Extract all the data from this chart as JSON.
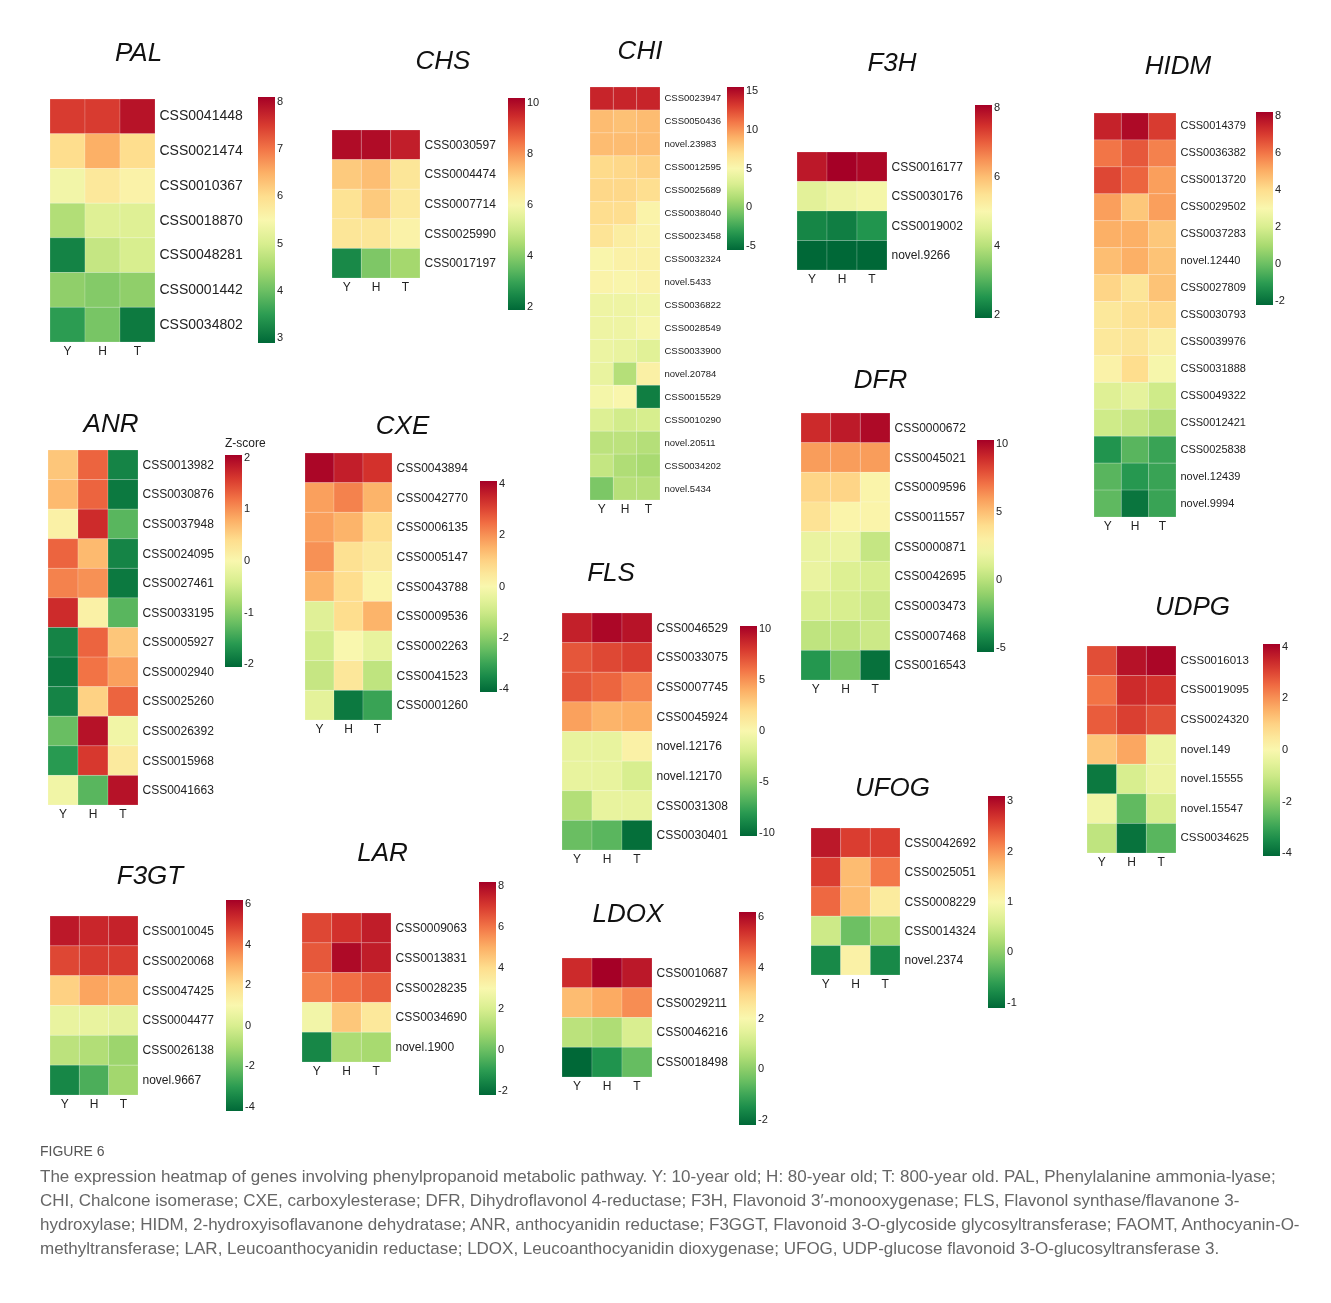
{
  "chart_data": [
    {
      "type": "heatmap",
      "title": "PAL",
      "categories": [
        "Y",
        "H",
        "T"
      ],
      "y_categories": [
        "CSS0041448",
        "CSS0021474",
        "CSS0010367",
        "CSS0018870",
        "CSS0048281",
        "CSS0001442",
        "CSS0034802"
      ],
      "cells": [
        [
          7.5,
          7.5,
          7.9
        ],
        [
          6.0,
          6.5,
          6.0
        ],
        [
          5.4,
          5.8,
          5.6
        ],
        [
          4.6,
          5.1,
          5.1
        ],
        [
          3.2,
          4.8,
          5.0
        ],
        [
          4.3,
          4.2,
          4.3
        ],
        [
          3.5,
          4.1,
          3.1
        ]
      ],
      "clim": [
        2.9,
        8.1
      ],
      "cticks": [
        3,
        4,
        5,
        6,
        7,
        8
      ],
      "annotations": [
        "FIGURE 6",
        "The expression heatmap of genes involving phenylpropanoid metabolic pathway. Y: 10-year old; H: 80-year old; T: 800-year old. PAL, Phenylalanine ammonia-lyase; CHI, Chalcone isomerase; CXE, carboxylesterase; DFR, Dihydroflavonol 4-reductase; F3H, Flavonoid 3′-monooxygenase; FLS, Flavonol synthase/flavanone 3-hydroxylase; HIDM, 2-hydroxyisoflavanone dehydratase; ANR, anthocyanidin reductase; F3GGT, Flavonoid 3-O-glycoside glycosyltransferase; FAOMT, Anthocyanin-O-methyltransferase; LAR, Leucoanthocyanidin reductase; LDOX, Leucoanthocyanidin dioxygenase; UFOG, UDP-glucose flavonoid 3-O-glucosyltransferase 3."
      ]
    },
    {
      "type": "heatmap",
      "title": "CHS",
      "categories": [
        "Y",
        "H",
        "T"
      ],
      "y_categories": [
        "CSS0030597",
        "CSS0004474",
        "CSS0007714",
        "CSS0025990",
        "CSS0017197"
      ],
      "cells": [
        [
          10,
          10,
          9.7
        ],
        [
          7.2,
          7.4,
          6.6
        ],
        [
          6.7,
          7.2,
          6.5
        ],
        [
          6.6,
          6.6,
          6.2
        ],
        [
          2.5,
          3.9,
          4.4
        ]
      ],
      "clim": [
        1.9,
        10.2
      ],
      "cticks": [
        2,
        4,
        6,
        8,
        10
      ]
    },
    {
      "type": "heatmap",
      "title": "CHI",
      "categories": [
        "Y",
        "H",
        "T"
      ],
      "y_categories": [
        "CSS0023947",
        "CSS0050436",
        "novel.23983",
        "CSS0012595",
        "CSS0025689",
        "CSS0038040",
        "CSS0023458",
        "CSS0032324",
        "novel.5433",
        "CSS0036822",
        "CSS0028549",
        "CSS0033900",
        "novel.20784",
        "CSS0015529",
        "CSS0010290",
        "novel.20511",
        "CSS0034202",
        "novel.5434"
      ],
      "cells": [
        [
          14,
          14,
          14
        ],
        [
          8.5,
          8.3,
          8.5
        ],
        [
          8.5,
          8.5,
          8.5
        ],
        [
          7.2,
          7.3,
          7.6
        ],
        [
          7.3,
          7.3,
          6.9
        ],
        [
          7.0,
          7.0,
          5.3
        ],
        [
          6.5,
          5.8,
          5.4
        ],
        [
          5.2,
          5.5,
          5.5
        ],
        [
          5.3,
          5.2,
          5.4
        ],
        [
          4.3,
          4.3,
          4.5
        ],
        [
          4.3,
          4.3,
          4.8
        ],
        [
          4.2,
          4.0,
          3.5
        ],
        [
          4.0,
          1.5,
          5.6
        ],
        [
          4.7,
          5.1,
          -4.5
        ],
        [
          3.3,
          2.7,
          2.9
        ],
        [
          1.8,
          1.8,
          1.5
        ],
        [
          2.1,
          1.3,
          1.0
        ],
        [
          -0.5,
          1.6,
          1.6
        ]
      ],
      "clim": [
        -5.5,
        15.5
      ],
      "cticks": [
        -5,
        0,
        5,
        10,
        15
      ]
    },
    {
      "type": "heatmap",
      "title": "F3H",
      "categories": [
        "Y",
        "H",
        "T"
      ],
      "y_categories": [
        "CSS0016177",
        "CSS0030176",
        "CSS0019002",
        "novel.9266"
      ],
      "cells": [
        [
          7.8,
          8.1,
          8.0
        ],
        [
          4.6,
          4.8,
          4.9
        ],
        [
          2.3,
          2.2,
          2.5
        ],
        [
          1.9,
          1.9,
          1.9
        ]
      ],
      "clim": [
        1.9,
        8.1
      ],
      "cticks": [
        2,
        4,
        6,
        8
      ]
    },
    {
      "type": "heatmap",
      "title": "HIDM",
      "categories": [
        "Y",
        "H",
        "T"
      ],
      "y_categories": [
        "CSS0014379",
        "CSS0036382",
        "CSS0013720",
        "CSS0029502",
        "CSS0037283",
        "novel.12440",
        "CSS0027809",
        "CSS0030793",
        "CSS0039976",
        "CSS0031888",
        "CSS0049322",
        "CSS0012421",
        "CSS0025838",
        "novel.12439",
        "novel.9994"
      ],
      "cells": [
        [
          7.5,
          8,
          7
        ],
        [
          6,
          6.5,
          5.8
        ],
        [
          6.8,
          6.3,
          5.3
        ],
        [
          5.3,
          4.5,
          5.3
        ],
        [
          5.0,
          5.0,
          4.5
        ],
        [
          4.7,
          5.0,
          4.6
        ],
        [
          4.2,
          3.7,
          4.6
        ],
        [
          3.6,
          3.9,
          4.1
        ],
        [
          3.6,
          3.7,
          3.3
        ],
        [
          3.2,
          4.0,
          2.9
        ],
        [
          2.2,
          2.4,
          1.8
        ],
        [
          1.8,
          1.6,
          1.2
        ],
        [
          -1.2,
          -0.3,
          -0.8
        ],
        [
          -0.3,
          -1.1,
          -0.8
        ],
        [
          -0.2,
          -1.9,
          -0.8
        ]
      ],
      "clim": [
        -2.2,
        8.2
      ],
      "cticks": [
        -2,
        0,
        2,
        4,
        6,
        8
      ]
    },
    {
      "type": "heatmap",
      "title": "ANR",
      "clabel": "Z-score",
      "categories": [
        "Y",
        "H",
        "T"
      ],
      "y_categories": [
        "CSS0013982",
        "CSS0030876",
        "CSS0037948",
        "CSS0024095",
        "CSS0027461",
        "CSS0033195",
        "CSS0005927",
        "CSS0002940",
        "CSS0025260",
        "CSS0026392",
        "CSS0015968",
        "CSS0041663"
      ],
      "cells": [
        [
          0.6,
          1.3,
          -1.8
        ],
        [
          0.7,
          1.3,
          -1.9
        ],
        [
          0.1,
          1.7,
          -1.3
        ],
        [
          1.3,
          0.7,
          -1.8
        ],
        [
          1.1,
          1.0,
          -1.9
        ],
        [
          1.7,
          0.1,
          -1.3
        ],
        [
          -1.8,
          1.3,
          0.6
        ],
        [
          -1.9,
          1.2,
          0.9
        ],
        [
          -1.8,
          0.5,
          1.3
        ],
        [
          -1.2,
          1.9,
          -0.1
        ],
        [
          -1.6,
          1.6,
          0.2
        ],
        [
          -0.1,
          -1.3,
          1.9
        ]
      ],
      "clim": [
        -2.05,
        2.05
      ],
      "cticks": [
        -2,
        -1,
        0,
        1,
        2
      ]
    },
    {
      "type": "heatmap",
      "title": "CXE",
      "categories": [
        "Y",
        "H",
        "T"
      ],
      "y_categories": [
        "CSS0043894",
        "CSS0042770",
        "CSS0006135",
        "CSS0005147",
        "CSS0043788",
        "CSS0009536",
        "CSS0002263",
        "CSS0041523",
        "CSS0001260"
      ],
      "cells": [
        [
          4,
          3.6,
          3.3
        ],
        [
          1.8,
          2.2,
          1.5
        ],
        [
          1.8,
          1.5,
          0.8
        ],
        [
          2.0,
          0.7,
          0.4
        ],
        [
          1.5,
          0.8,
          0.1
        ],
        [
          -0.6,
          0.8,
          1.5
        ],
        [
          -0.9,
          0,
          -0.4
        ],
        [
          -1.1,
          0.5,
          -1.2
        ],
        [
          -0.5,
          -3.8,
          -3.0
        ]
      ],
      "clim": [
        -4.1,
        4.1
      ],
      "cticks": [
        -4,
        -2,
        0,
        2,
        4
      ]
    },
    {
      "type": "heatmap",
      "title": "DFR",
      "categories": [
        "Y",
        "H",
        "T"
      ],
      "y_categories": [
        "CSS0000672",
        "CSS0045021",
        "CSS0009596",
        "CSS0011557",
        "CSS0000871",
        "CSS0042695",
        "CSS0003473",
        "CSS0007468",
        "CSS0016543"
      ],
      "cells": [
        [
          9,
          9.5,
          10
        ],
        [
          6,
          6,
          6
        ],
        [
          4.3,
          4.3,
          2.7
        ],
        [
          3.7,
          2.7,
          2.7
        ],
        [
          1.8,
          1.9,
          0.4
        ],
        [
          1.8,
          1.2,
          1.0
        ],
        [
          1.1,
          1.0,
          0.6
        ],
        [
          0.2,
          0.2,
          0.6
        ],
        [
          -3.7,
          -1.7,
          -5
        ]
      ],
      "clim": [
        -5.3,
        10.3
      ],
      "cticks": [
        -5,
        0,
        5,
        10
      ]
    },
    {
      "type": "heatmap",
      "title": "FLS",
      "categories": [
        "Y",
        "H",
        "T"
      ],
      "y_categories": [
        "CSS0046529",
        "CSS0033075",
        "CSS0007745",
        "CSS0045924",
        "novel.12176",
        "novel.12170",
        "CSS0031308",
        "CSS0030401"
      ],
      "cells": [
        [
          9,
          10,
          9.5
        ],
        [
          7,
          7.5,
          7.8
        ],
        [
          7,
          6.5,
          5.5
        ],
        [
          4.5,
          3.8,
          4.0
        ],
        [
          -1,
          -1,
          0.5
        ],
        [
          -1,
          -1,
          -2
        ],
        [
          -3.5,
          -1,
          -1
        ],
        [
          -6,
          -6.5,
          -10
        ]
      ],
      "clim": [
        -10.3,
        10.3
      ],
      "cticks": [
        -10,
        -5,
        0,
        5,
        10
      ]
    },
    {
      "type": "heatmap",
      "title": "UDPG",
      "categories": [
        "Y",
        "H",
        "T"
      ],
      "y_categories": [
        "CSS0016013",
        "CSS0019095",
        "CSS0024320",
        "novel.149",
        "novel.15555",
        "novel.15547",
        "CSS0034625"
      ],
      "cells": [
        [
          2.9,
          3.8,
          4.0
        ],
        [
          2.4,
          3.4,
          3.3
        ],
        [
          2.7,
          3.1,
          2.9
        ],
        [
          1.2,
          1.7,
          -0.3
        ],
        [
          -3.8,
          -0.8,
          -0.3
        ],
        [
          -0.2,
          -2.5,
          -0.8
        ],
        [
          -1.2,
          -3.9,
          -2.6
        ]
      ],
      "clim": [
        -4.1,
        4.1
      ],
      "cticks": [
        -4,
        -2,
        0,
        2,
        4
      ]
    },
    {
      "type": "heatmap",
      "title": "UFOG",
      "categories": [
        "Y",
        "H",
        "T"
      ],
      "y_categories": [
        "CSS0042692",
        "CSS0025051",
        "CSS0008229",
        "CSS0014324",
        "novel.2374"
      ],
      "cells": [
        [
          2.9,
          2.6,
          2.6
        ],
        [
          2.6,
          1.7,
          2.2
        ],
        [
          2.3,
          1.7,
          1.2
        ],
        [
          0.5,
          -0.2,
          0.2
        ],
        [
          -0.8,
          1.1,
          -0.8
        ]
      ],
      "clim": [
        -1.1,
        3.1
      ],
      "cticks": [
        -1,
        0,
        1,
        2,
        3
      ]
    },
    {
      "type": "heatmap",
      "title": "LAR",
      "categories": [
        "Y",
        "H",
        "T"
      ],
      "y_categories": [
        "CSS0009063",
        "CSS0013831",
        "CSS0028235",
        "CSS0034690",
        "novel.1900"
      ],
      "cells": [
        [
          6.8,
          7.2,
          7.6
        ],
        [
          6.5,
          8,
          7.6
        ],
        [
          5.8,
          6.1,
          6.4
        ],
        [
          2.8,
          4.5,
          3.6
        ],
        [
          -1.5,
          1.1,
          1.0
        ]
      ],
      "clim": [
        -2.2,
        8.2
      ],
      "cticks": [
        -2,
        0,
        2,
        4,
        6,
        8
      ]
    },
    {
      "type": "heatmap",
      "title": "F3GT",
      "categories": [
        "Y",
        "H",
        "T"
      ],
      "y_categories": [
        "CSS0010045",
        "CSS0020068",
        "CSS0047425",
        "CSS0004477",
        "CSS0026138",
        "novel.9667"
      ],
      "cells": [
        [
          5.7,
          5.4,
          5.5
        ],
        [
          4.8,
          5.0,
          5.0
        ],
        [
          2.3,
          3.2,
          3.0
        ],
        [
          0.5,
          0.5,
          0.4
        ],
        [
          -0.6,
          -0.8,
          -1.2
        ],
        [
          -3.5,
          -2.5,
          -1.1
        ]
      ],
      "clim": [
        -4.2,
        6.2
      ],
      "cticks": [
        -4,
        -2,
        0,
        2,
        4,
        6
      ]
    },
    {
      "type": "heatmap",
      "title": "LDOX",
      "categories": [
        "Y",
        "H",
        "T"
      ],
      "y_categories": [
        "CSS0010687",
        "CSS0029211",
        "CSS0046216",
        "CSS0018498"
      ],
      "cells": [
        [
          5.5,
          6.2,
          5.8
        ],
        [
          3.4,
          3.7,
          4.1
        ],
        [
          0.7,
          0.5,
          1.2
        ],
        [
          -2.2,
          -1.4,
          -0.5
        ]
      ],
      "clim": [
        -2.2,
        6.2
      ],
      "cticks": [
        -2,
        0,
        2,
        4,
        6
      ]
    }
  ]
}
